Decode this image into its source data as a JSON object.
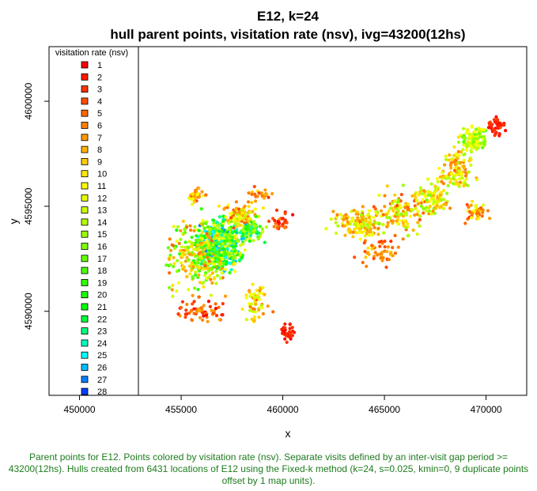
{
  "chart_data": {
    "type": "scatter",
    "title": "E12, k=24",
    "subtitle": "hull parent points, visitation rate (nsv), ivg=43200(12hs)",
    "xlabel": "x",
    "ylabel": "y",
    "xlim": [
      448500,
      472000
    ],
    "ylim": [
      4586000,
      4602600
    ],
    "x_ticks": [
      450000,
      455000,
      460000,
      465000,
      470000
    ],
    "y_ticks": [
      4590000,
      4595000,
      4600000
    ],
    "grid": false,
    "legend": {
      "title": "visitation rate (nsv)",
      "placement": "left",
      "entries": [
        "1",
        "2",
        "3",
        "4",
        "5",
        "6",
        "7",
        "8",
        "9",
        "10",
        "11",
        "12",
        "13",
        "14",
        "15",
        "16",
        "17",
        "18",
        "19",
        "20",
        "21",
        "22",
        "23",
        "24",
        "25",
        "26",
        "27",
        "28"
      ]
    },
    "color_scale": [
      "#ff0000",
      "#ff1a00",
      "#ff3300",
      "#ff4d00",
      "#ff6600",
      "#ff8000",
      "#ff9900",
      "#ffb300",
      "#ffcc00",
      "#ffe600",
      "#ffff00",
      "#e6ff00",
      "#ccff00",
      "#b3ff00",
      "#99ff00",
      "#80ff00",
      "#66ff00",
      "#4dff00",
      "#33ff00",
      "#1aff00",
      "#00ff00",
      "#00ff40",
      "#00ff80",
      "#00ffbf",
      "#00ffff",
      "#00bfff",
      "#0080ff",
      "#0040ff",
      "#0000ff"
    ],
    "clusters": [
      {
        "x": 456900,
        "y": 4593200,
        "sx": 900,
        "sy": 900,
        "n": 520,
        "rate": [
          10,
          27
        ]
      },
      {
        "x": 455900,
        "y": 4592600,
        "sx": 1200,
        "sy": 1300,
        "n": 260,
        "rate": [
          5,
          20
        ]
      },
      {
        "x": 457900,
        "y": 4594500,
        "sx": 700,
        "sy": 500,
        "n": 90,
        "rate": [
          4,
          14
        ]
      },
      {
        "x": 458500,
        "y": 4593800,
        "sx": 500,
        "sy": 400,
        "n": 70,
        "rate": [
          12,
          26
        ]
      },
      {
        "x": 456000,
        "y": 4590000,
        "sx": 1000,
        "sy": 400,
        "n": 60,
        "rate": [
          1,
          8
        ]
      },
      {
        "x": 458700,
        "y": 4590400,
        "sx": 500,
        "sy": 700,
        "n": 60,
        "rate": [
          5,
          14
        ]
      },
      {
        "x": 460200,
        "y": 4589000,
        "sx": 300,
        "sy": 350,
        "n": 35,
        "rate": [
          1,
          3
        ]
      },
      {
        "x": 455800,
        "y": 4595500,
        "sx": 400,
        "sy": 300,
        "n": 35,
        "rate": [
          3,
          12
        ]
      },
      {
        "x": 458900,
        "y": 4595500,
        "sx": 400,
        "sy": 300,
        "n": 25,
        "rate": [
          3,
          10
        ]
      },
      {
        "x": 459900,
        "y": 4594300,
        "sx": 400,
        "sy": 350,
        "n": 30,
        "rate": [
          1,
          6
        ]
      },
      {
        "x": 463800,
        "y": 4594200,
        "sx": 1000,
        "sy": 600,
        "n": 140,
        "rate": [
          5,
          15
        ]
      },
      {
        "x": 465700,
        "y": 4594700,
        "sx": 900,
        "sy": 800,
        "n": 120,
        "rate": [
          4,
          16
        ]
      },
      {
        "x": 467300,
        "y": 4595500,
        "sx": 700,
        "sy": 700,
        "n": 90,
        "rate": [
          6,
          16
        ]
      },
      {
        "x": 468600,
        "y": 4596700,
        "sx": 700,
        "sy": 700,
        "n": 110,
        "rate": [
          5,
          15
        ]
      },
      {
        "x": 469400,
        "y": 4598200,
        "sx": 500,
        "sy": 500,
        "n": 120,
        "rate": [
          10,
          18
        ]
      },
      {
        "x": 470500,
        "y": 4598900,
        "sx": 350,
        "sy": 500,
        "n": 40,
        "rate": [
          1,
          4
        ]
      },
      {
        "x": 469500,
        "y": 4594800,
        "sx": 500,
        "sy": 400,
        "n": 40,
        "rate": [
          3,
          12
        ]
      },
      {
        "x": 464800,
        "y": 4592800,
        "sx": 700,
        "sy": 500,
        "n": 50,
        "rate": [
          3,
          10
        ]
      }
    ]
  },
  "caption": "Parent points for E12. Points colored by visitation rate (nsv). Separate visits defined by an inter-visit gap period >= 43200(12hs). Hulls created from 6431 locations of E12 using the Fixed-k method (k=24, s=0.025, kmin=0, 9 duplicate points offset by 1 map units)."
}
